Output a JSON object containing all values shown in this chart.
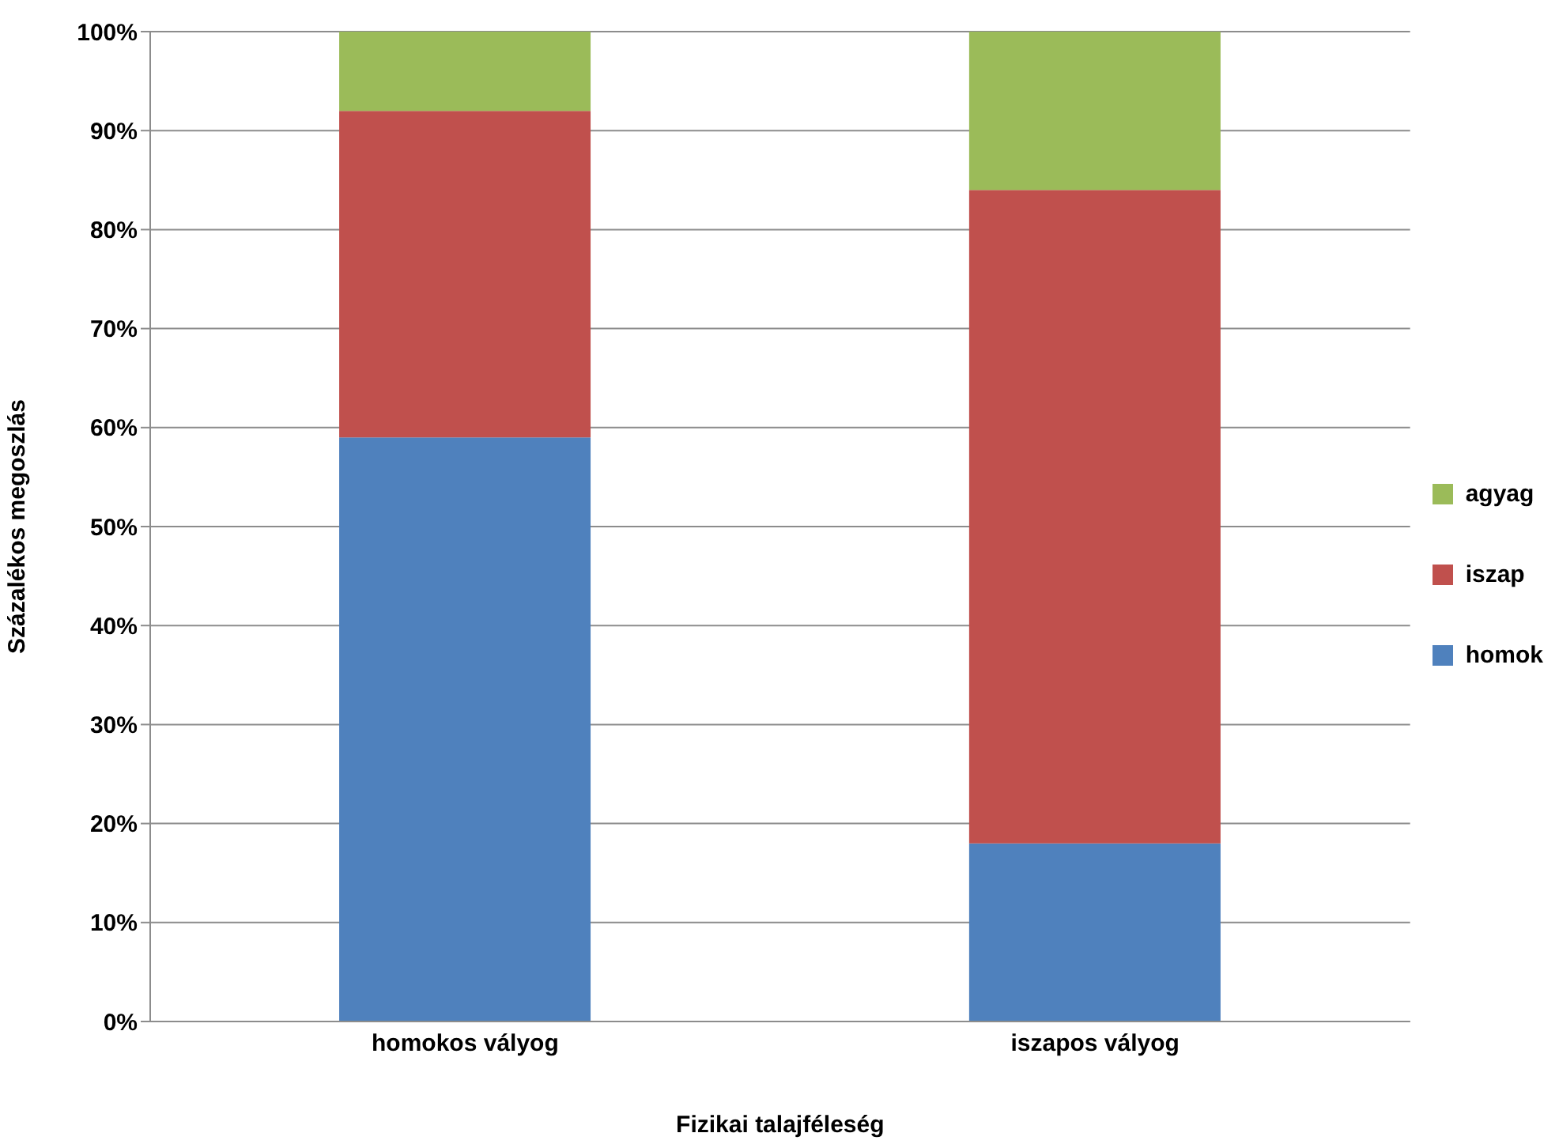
{
  "chart_data": {
    "type": "bar",
    "stacked": true,
    "xlabel": "Fizikai talajféleség",
    "ylabel": "Százalékos megoszlás",
    "categories": [
      "homokos vályog",
      "iszapos vályog"
    ],
    "series": [
      {
        "name": "homok",
        "color": "#4f81bd",
        "values": [
          59,
          18
        ]
      },
      {
        "name": "iszap",
        "color": "#c0504d",
        "values": [
          33,
          66
        ]
      },
      {
        "name": "agyag",
        "color": "#9bbb59",
        "values": [
          8,
          16
        ]
      }
    ],
    "ylim": [
      0,
      100
    ],
    "yticks": [
      {
        "value": 0,
        "label": "0%"
      },
      {
        "value": 10,
        "label": "10%"
      },
      {
        "value": 20,
        "label": "20%"
      },
      {
        "value": 30,
        "label": "30%"
      },
      {
        "value": 40,
        "label": "40%"
      },
      {
        "value": 50,
        "label": "50%"
      },
      {
        "value": 60,
        "label": "60%"
      },
      {
        "value": 70,
        "label": "70%"
      },
      {
        "value": 80,
        "label": "80%"
      },
      {
        "value": 90,
        "label": "90%"
      },
      {
        "value": 100,
        "label": "100%"
      }
    ],
    "grid": "y",
    "legend": "right"
  }
}
